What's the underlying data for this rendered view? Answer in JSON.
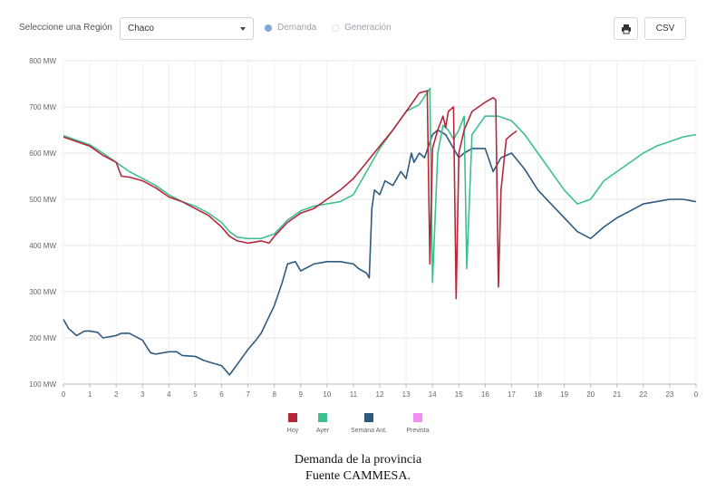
{
  "toolbar": {
    "region_label": "Seleccione una Región",
    "region_value": "Chaco",
    "radio_demand": "Demanda",
    "radio_generation": "Generación",
    "print_icon": "printer-icon",
    "csv_label": "CSV"
  },
  "chart_data": {
    "type": "line",
    "title": "",
    "xlabel": "",
    "ylabel": "",
    "ylim": [
      100,
      800
    ],
    "yticks": [
      100,
      200,
      300,
      400,
      500,
      600,
      700,
      800
    ],
    "ytick_labels": [
      "100 MW",
      "200 MW",
      "300 MW",
      "400 MW",
      "500 MW",
      "600 MW",
      "700 MW",
      "800 MW"
    ],
    "xlim": [
      0,
      24
    ],
    "xticks": [
      0,
      1,
      2,
      3,
      4,
      5,
      6,
      7,
      8,
      9,
      10,
      11,
      12,
      13,
      14,
      15,
      16,
      17,
      18,
      19,
      20,
      21,
      22,
      23,
      24
    ],
    "xtick_labels": [
      "0",
      "1",
      "2",
      "3",
      "4",
      "5",
      "6",
      "7",
      "8",
      "9",
      "10",
      "11",
      "12",
      "13",
      "14",
      "15",
      "16",
      "17",
      "18",
      "19",
      "20",
      "21",
      "22",
      "23",
      "0"
    ],
    "grid": true,
    "legend_position": "bottom",
    "series": [
      {
        "name": "Hoy",
        "color": "#b5283a",
        "x": [
          0,
          0.5,
          1,
          1.5,
          2,
          2.2,
          2.5,
          3,
          3.5,
          4,
          4.5,
          5,
          5.5,
          6,
          6.3,
          6.6,
          7,
          7.5,
          7.8,
          8,
          8.5,
          9,
          9.5,
          10,
          10.5,
          11,
          11.5,
          12,
          12.5,
          13,
          13.5,
          13.8,
          13.9,
          14,
          14.2,
          14.4,
          14.5,
          14.6,
          14.8,
          14.9,
          15,
          15.2,
          15.5,
          16,
          16.3,
          16.4,
          16.5,
          16.6,
          16.8,
          17,
          17.2
        ],
        "y": [
          635,
          625,
          615,
          595,
          580,
          550,
          548,
          540,
          525,
          505,
          495,
          480,
          465,
          440,
          420,
          410,
          405,
          410,
          405,
          420,
          450,
          470,
          480,
          500,
          520,
          545,
          580,
          615,
          650,
          690,
          730,
          735,
          360,
          610,
          650,
          680,
          655,
          690,
          700,
          285,
          600,
          650,
          690,
          710,
          720,
          715,
          310,
          520,
          630,
          640,
          648
        ]
      },
      {
        "name": "Ayer",
        "color": "#3fbf8f",
        "x": [
          0,
          0.5,
          1,
          1.5,
          2,
          2.5,
          3,
          3.5,
          4,
          4.5,
          5,
          5.5,
          6,
          6.3,
          6.6,
          7,
          7.5,
          8,
          8.5,
          9,
          9.5,
          10,
          10.5,
          11,
          11.5,
          12,
          12.5,
          13,
          13.5,
          13.9,
          14,
          14.2,
          14.4,
          14.6,
          14.8,
          15,
          15.2,
          15.3,
          15.5,
          16,
          16.5,
          17,
          17.5,
          18,
          18.5,
          19,
          19.5,
          20,
          20.5,
          21,
          21.5,
          22,
          22.5,
          23,
          23.5,
          24
        ],
        "y": [
          638,
          628,
          618,
          600,
          580,
          560,
          545,
          530,
          510,
          495,
          485,
          470,
          450,
          430,
          418,
          415,
          415,
          425,
          455,
          475,
          485,
          490,
          495,
          510,
          560,
          610,
          650,
          690,
          705,
          740,
          320,
          600,
          660,
          650,
          630,
          650,
          680,
          350,
          640,
          680,
          680,
          670,
          640,
          600,
          560,
          520,
          490,
          500,
          540,
          560,
          580,
          600,
          615,
          625,
          635,
          640
        ]
      },
      {
        "name": "Semana Ant.",
        "color": "#2d5a80",
        "x": [
          0,
          0.2,
          0.5,
          0.8,
          1,
          1.3,
          1.5,
          2,
          2.2,
          2.5,
          3,
          3.3,
          3.5,
          4,
          4.3,
          4.5,
          5,
          5.3,
          5.5,
          6,
          6.3,
          6.5,
          7,
          7.3,
          7.5,
          8,
          8.3,
          8.5,
          8.8,
          9,
          9.5,
          10,
          10.5,
          11,
          11.2,
          11.5,
          11.6,
          11.7,
          11.8,
          12,
          12.2,
          12.5,
          12.8,
          13,
          13.2,
          13.3,
          13.5,
          13.7,
          14,
          14.2,
          14.5,
          14.8,
          15,
          15.2,
          15.5,
          16,
          16.3,
          16.6,
          17,
          17.5,
          18,
          18.5,
          19,
          19.5,
          20,
          20.5,
          21,
          21.5,
          22,
          22.5,
          23,
          23.5,
          24
        ],
        "y": [
          240,
          220,
          205,
          215,
          215,
          212,
          200,
          205,
          210,
          210,
          195,
          168,
          165,
          170,
          170,
          162,
          160,
          152,
          148,
          140,
          120,
          135,
          175,
          195,
          210,
          270,
          320,
          360,
          365,
          345,
          360,
          365,
          365,
          360,
          350,
          340,
          330,
          480,
          520,
          510,
          540,
          530,
          560,
          545,
          600,
          580,
          600,
          590,
          640,
          650,
          640,
          610,
          590,
          600,
          610,
          610,
          560,
          590,
          600,
          565,
          520,
          490,
          460,
          430,
          415,
          440,
          460,
          475,
          490,
          495,
          500,
          500,
          495
        ]
      },
      {
        "name": "Prevista",
        "color": "#f08ff0",
        "x": [],
        "y": []
      }
    ]
  },
  "caption": {
    "line1": "Demanda de la provincia",
    "line2": "Fuente CAMMESA."
  }
}
